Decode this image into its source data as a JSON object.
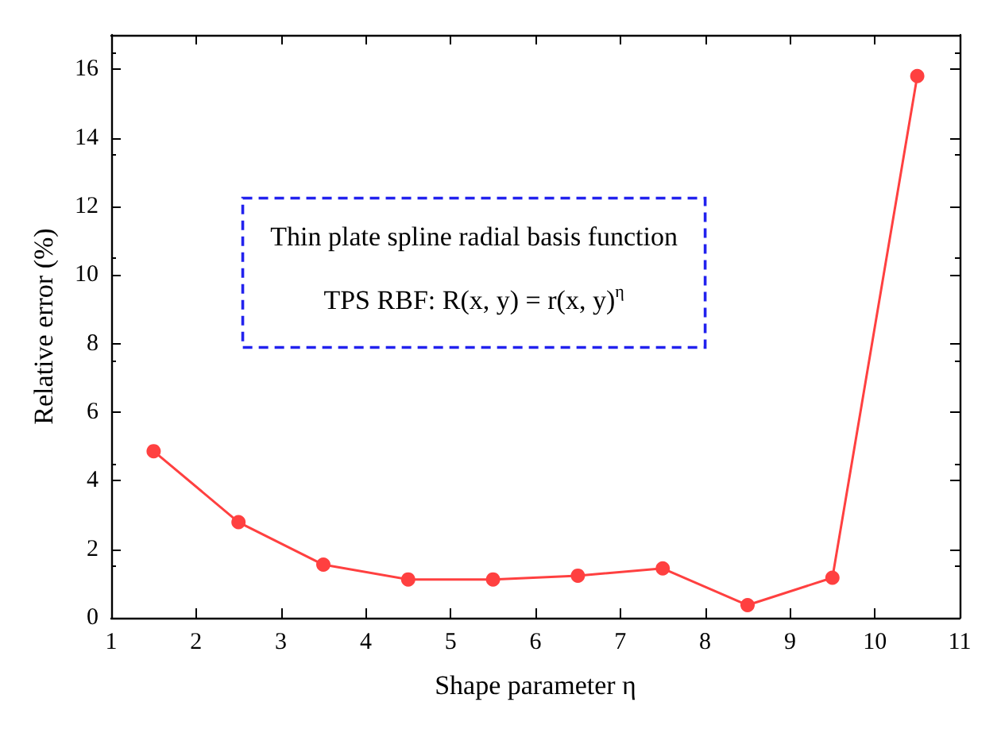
{
  "chart_data": {
    "type": "line",
    "xlabel": "Shape parameter η",
    "ylabel": "Relative error (%)",
    "x": [
      1.5,
      2.5,
      3.5,
      4.5,
      5.5,
      6.5,
      7.5,
      8.5,
      9.5,
      10.5
    ],
    "series": [
      {
        "color": "#ff4040",
        "values": [
          4.86,
          2.79,
          1.55,
          1.12,
          1.12,
          1.23,
          1.44,
          0.37,
          1.17,
          15.8
        ]
      }
    ],
    "xlim": [
      1,
      11
    ],
    "xticks": [
      1,
      2,
      3,
      4,
      5,
      6,
      7,
      8,
      9,
      10,
      11
    ],
    "ylim": [
      0,
      17
    ],
    "yticks": [
      0,
      2,
      4,
      6,
      8,
      10,
      12,
      14,
      16
    ],
    "grid": false,
    "marker": "circle",
    "line_style": "solid",
    "annotations": [
      "Thin plate spline radial basis function",
      "TPS RBF: R(x, y) = r(x, y)$^{η}$"
    ]
  }
}
